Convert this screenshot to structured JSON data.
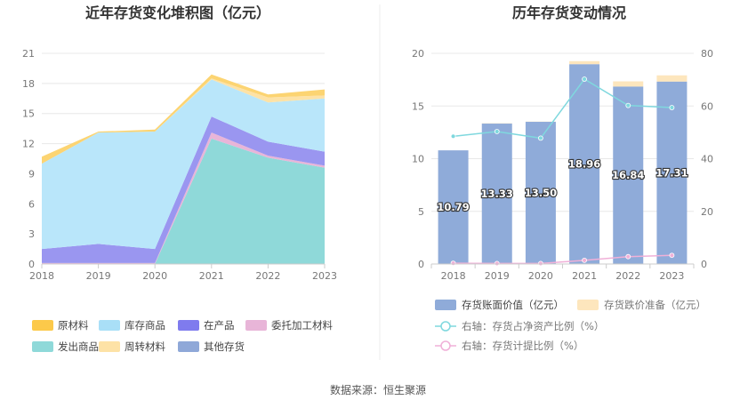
{
  "footer": {
    "source": "数据来源：恒生聚源"
  },
  "chart_data": [
    {
      "type": "area",
      "stacked": true,
      "title": "近年存货变化堆积图（亿元）",
      "x": [
        "2018",
        "2019",
        "2020",
        "2021",
        "2022",
        "2023"
      ],
      "ylim": [
        0,
        21
      ],
      "yticks": [
        0,
        3,
        6,
        9,
        12,
        15,
        18,
        21
      ],
      "grid": true,
      "legend_position": "bottom",
      "series": [
        {
          "name": "发出商品",
          "color": "#8fd9d9",
          "values": [
            0,
            0,
            0,
            12.5,
            10.6,
            9.6
          ]
        },
        {
          "name": "委托加工材料",
          "color": "#e8b5d8",
          "values": [
            0.1,
            0.1,
            0.1,
            0.6,
            0.2,
            0.2
          ]
        },
        {
          "name": "在产品",
          "color": "#9a96f0",
          "values": [
            1.4,
            1.9,
            1.4,
            1.6,
            1.4,
            1.4
          ]
        },
        {
          "name": "库存商品",
          "color": "#b9e6fa",
          "values": [
            8.5,
            11.1,
            11.7,
            3.7,
            3.9,
            5.3
          ]
        },
        {
          "name": "周转材料",
          "color": "#fde2a6",
          "values": [
            0,
            0,
            0,
            0.1,
            0.5,
            0.3
          ]
        },
        {
          "name": "原材料",
          "color": "#fcd472",
          "values": [
            0.7,
            0.1,
            0.2,
            0.4,
            0.3,
            0.6
          ]
        },
        {
          "name": "其他存货",
          "color": "#8fa8d8",
          "values": [
            0,
            0,
            0,
            0,
            0,
            0
          ]
        }
      ],
      "legend": [
        {
          "name": "原材料",
          "color": "#fcc94a"
        },
        {
          "name": "库存商品",
          "color": "#a9dff7"
        },
        {
          "name": "在产品",
          "color": "#7f7bee"
        },
        {
          "name": "委托加工材料",
          "color": "#e8b5d8"
        },
        {
          "name": "发出商品",
          "color": "#8fd9d9"
        },
        {
          "name": "周转材料",
          "color": "#fde2a6"
        },
        {
          "name": "其他存货",
          "color": "#8fa8d8"
        }
      ]
    },
    {
      "type": "bar+line",
      "title": "历年存货变动情况",
      "x": [
        "2018",
        "2019",
        "2020",
        "2021",
        "2022",
        "2023"
      ],
      "ylim": [
        0,
        20
      ],
      "yticks": [
        0,
        5,
        10,
        15,
        20
      ],
      "y2lim": [
        0,
        80
      ],
      "y2ticks": [
        0,
        20,
        40,
        60,
        80
      ],
      "grid": true,
      "legend_position": "bottom",
      "bars": [
        {
          "name": "存货账面价值（亿元）",
          "color": "#8fabd9",
          "values": [
            10.79,
            13.33,
            13.5,
            18.96,
            16.84,
            17.31
          ],
          "labels": [
            "10.79",
            "13.33",
            "13.50",
            "18.96",
            "16.84",
            "17.31"
          ]
        },
        {
          "name": "存货跌价准备（亿元）",
          "color": "#fde6bd",
          "values": [
            0,
            0.03,
            0.02,
            0.3,
            0.5,
            0.6
          ]
        }
      ],
      "lines": [
        {
          "name": "右轴：存货占净资产比例（%）",
          "color": "#7fd8de",
          "axis": "right",
          "values": [
            48.5,
            50.3,
            47.8,
            70.2,
            60.2,
            59.4
          ]
        },
        {
          "name": "右轴：存货计提比例（%）",
          "color": "#f0b0d8",
          "axis": "right",
          "values": [
            0.3,
            0.2,
            0.2,
            1.4,
            2.8,
            3.3
          ]
        }
      ]
    }
  ]
}
